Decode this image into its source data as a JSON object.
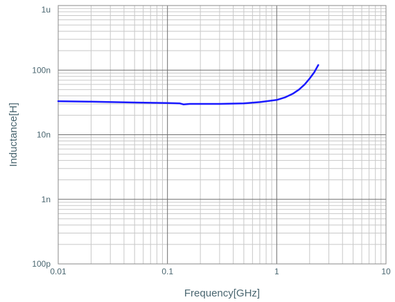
{
  "chart_data": {
    "type": "line",
    "xlabel": "Frequency[GHz]",
    "ylabel": "Inductance[H]",
    "x_scale": "log",
    "y_scale": "log",
    "xlim": [
      0.01,
      10
    ],
    "ylim": [
      1e-10,
      1e-06
    ],
    "x_ticks": [
      {
        "value": 0.01,
        "label": "0.01"
      },
      {
        "value": 0.1,
        "label": "0.1"
      },
      {
        "value": 1,
        "label": "1"
      },
      {
        "value": 10,
        "label": "10"
      }
    ],
    "y_ticks": [
      {
        "value": 1e-10,
        "label": "100p"
      },
      {
        "value": 1e-09,
        "label": "1n"
      },
      {
        "value": 1e-08,
        "label": "10n"
      },
      {
        "value": 1e-07,
        "label": "100n"
      },
      {
        "value": 1e-06,
        "label": "1u"
      }
    ],
    "grid": true,
    "line_color": "#1a1aff",
    "series": [
      {
        "x": [
          0.01,
          0.02,
          0.05,
          0.1,
          0.13,
          0.14,
          0.16,
          0.2,
          0.3,
          0.5,
          0.7,
          1.0,
          1.2,
          1.4,
          1.6,
          1.8,
          2.0,
          2.2,
          2.4
        ],
        "y": [
          3.3e-08,
          3.25e-08,
          3.15e-08,
          3.1e-08,
          3.05e-08,
          2.95e-08,
          3e-08,
          3e-08,
          3e-08,
          3.05e-08,
          3.2e-08,
          3.45e-08,
          3.8e-08,
          4.3e-08,
          5e-08,
          6e-08,
          7.4e-08,
          9.2e-08,
          1.2e-07
        ]
      }
    ]
  }
}
